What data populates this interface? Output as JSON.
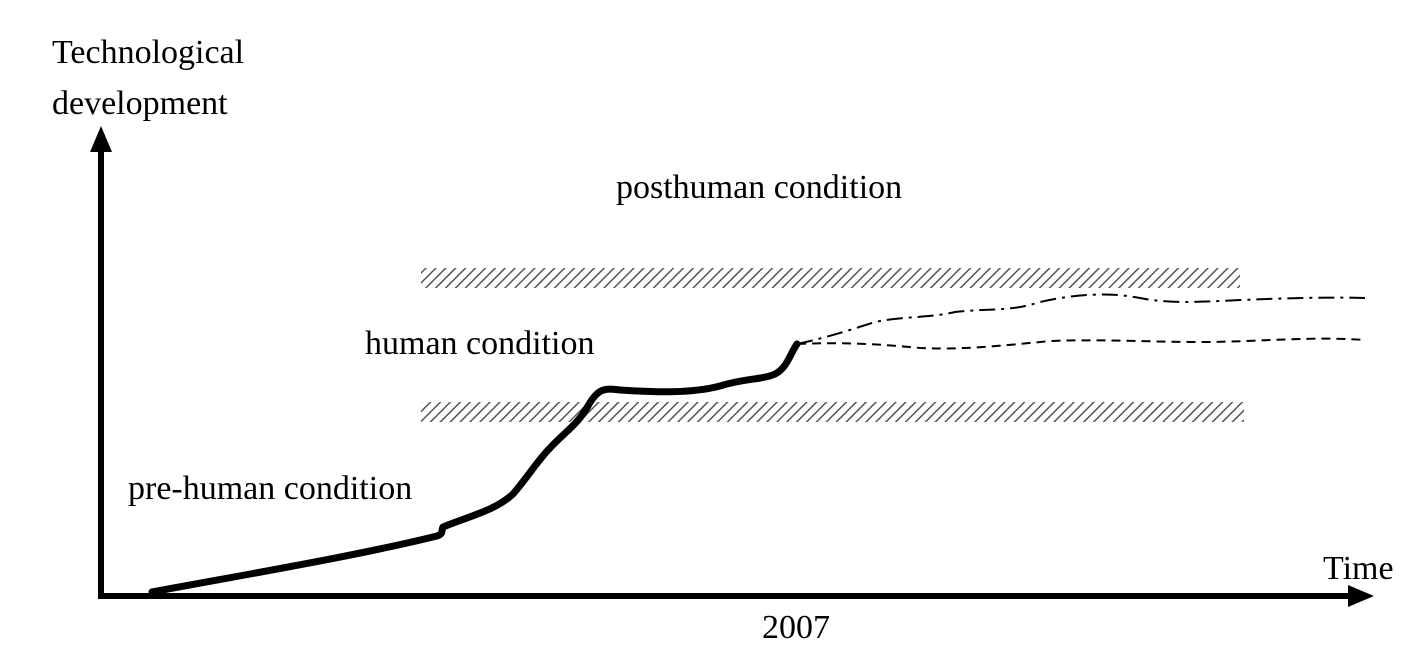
{
  "axes": {
    "y_label_line1": "Technological",
    "y_label_line2": "development",
    "x_label": "Time",
    "x_tick": "2007"
  },
  "regions": {
    "posthuman": "posthuman condition",
    "human": "human condition",
    "prehuman": "pre-human condition"
  },
  "colors": {
    "ink": "#000000",
    "hatch": "#555555",
    "background": "#ffffff"
  }
}
